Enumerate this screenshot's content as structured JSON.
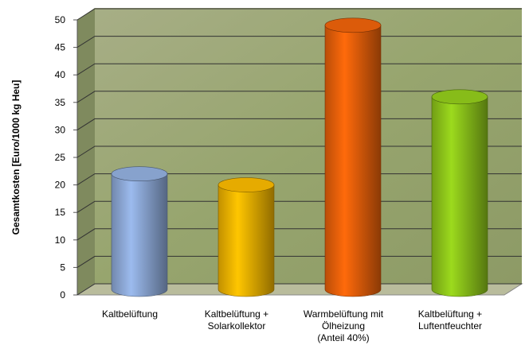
{
  "chart_data": {
    "type": "cylinder-bar",
    "y_label": "Gesamtkosten [Euro/1000 kg Heu]",
    "categories": [
      [
        "Kaltbelüftung"
      ],
      [
        "Kaltbelüftung +",
        "Solarkollektor"
      ],
      [
        "Warmbelüftung mit",
        "Ölheizung",
        "(Anteil 40%)"
      ],
      [
        "Kaltbelüftung +",
        "Luftentfeuchter"
      ]
    ],
    "values": [
      21,
      19,
      48,
      35
    ],
    "colors": [
      "#8eaad8",
      "#f2b400",
      "#e8600a",
      "#8ec61a"
    ],
    "ylim": [
      0,
      50
    ],
    "yticks": [
      0,
      5,
      10,
      15,
      20,
      25,
      30,
      35,
      40,
      45,
      50
    ],
    "grid": true
  }
}
